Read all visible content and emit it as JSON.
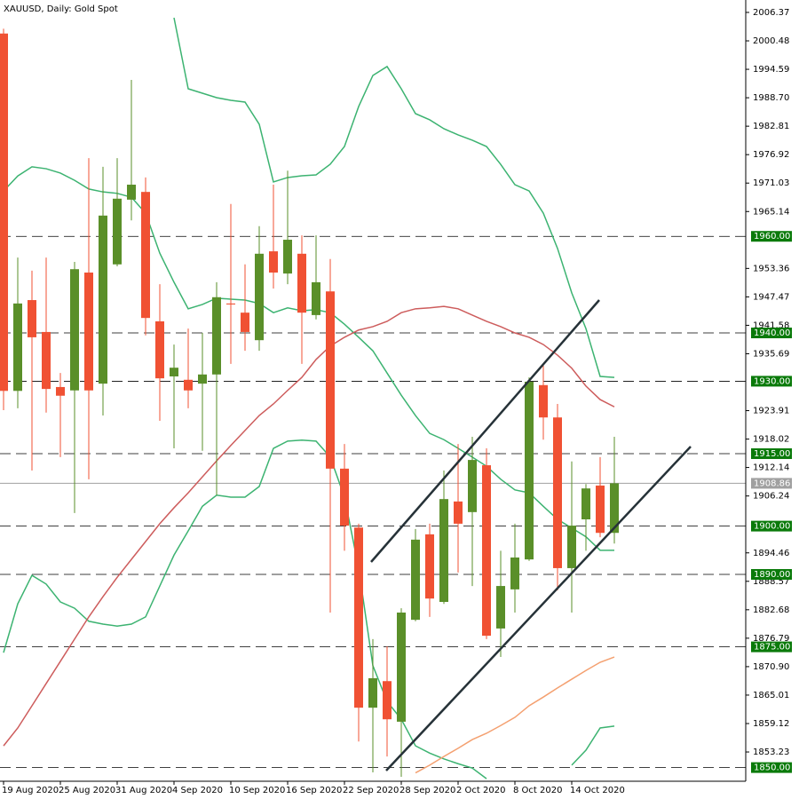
{
  "chart_data": {
    "type": "candlestick",
    "title": "XAUUSD, Daily:  Gold Spot",
    "categories": [
      "19 Aug 2020",
      null,
      null,
      null,
      "25 Aug 2020",
      null,
      null,
      null,
      "31 Aug 2020",
      null,
      null,
      null,
      "4 Sep 2020",
      null,
      null,
      null,
      "10 Sep 2020",
      null,
      null,
      null,
      "16 Sep 2020",
      null,
      null,
      null,
      "22 Sep 2020",
      null,
      null,
      null,
      "28 Sep 2020",
      null,
      null,
      null,
      "2 Oct 2020",
      null,
      null,
      null,
      "8 Oct 2020",
      null,
      null,
      null,
      "14 Oct 2020",
      null,
      null,
      null
    ],
    "open": [
      2002,
      1928,
      1946.8,
      1940.2,
      1928.8,
      1928.1,
      1952.5,
      1929.5,
      1954.2,
      1967.6,
      1969.2,
      1942.4,
      1931.0,
      1930.3,
      1929.5,
      1931.4,
      1946.1,
      1944.2,
      1938.5,
      1956.9,
      1952.3,
      1956.4,
      1943.7,
      1948.6,
      1911.9,
      1899.7,
      1862.4,
      1867.9,
      1859.5,
      1880.6,
      1898.3,
      1884.3,
      1905.1,
      1902.9,
      1912.6,
      1878.8,
      1886.9,
      1893.1,
      1929.2,
      1922.5,
      1891.3,
      1901.4,
      1908.4,
      1898.6
    ],
    "high": [
      2003,
      1955.6,
      1952.9,
      1955.6,
      1931.7,
      1954.7,
      1976.2,
      1974.4,
      1976.2,
      1992.4,
      1972.2,
      1950.1,
      1937.6,
      1940.9,
      1940.0,
      1950.5,
      1966.7,
      1954.2,
      1962.1,
      1970.7,
      1973.6,
      1960.2,
      1960.2,
      1955.3,
      1917.0,
      1900.5,
      1876.6,
      1875.1,
      1883.0,
      1899.4,
      1900.5,
      1911.5,
      1917.0,
      1918.5,
      1916.1,
      1894.9,
      1900.5,
      1930.8,
      1933.2,
      1925.3,
      1913.4,
      1908.7,
      1914.3,
      1918.5
    ],
    "low": [
      1924,
      1924.4,
      1911.5,
      1923.5,
      1914.3,
      1902.7,
      1909.7,
      1922.9,
      1953.8,
      1963.3,
      1939.5,
      1921.8,
      1916.1,
      1924.4,
      1915.6,
      1906.4,
      1933.6,
      1936.3,
      1936.3,
      1949.2,
      1950.1,
      1933.6,
      1942.8,
      1882.1,
      1894.9,
      1855.4,
      1849.0,
      1852.3,
      1848.1,
      1880.3,
      1881.2,
      1883.9,
      1890.4,
      1887.6,
      1876.6,
      1872.9,
      1882.1,
      1892.8,
      1917.9,
      1886.7,
      1882.1,
      1894.9,
      1897.7,
      1896.4
    ],
    "close": [
      1928,
      1946.1,
      1939.1,
      1928.4,
      1927.0,
      1953.2,
      1928.1,
      1964.3,
      1967.8,
      1970.7,
      1943.1,
      1930.6,
      1932.8,
      1928.1,
      1931.4,
      1947.4,
      1945.9,
      1940.2,
      1956.4,
      1952.5,
      1959.3,
      1944.2,
      1950.5,
      1911.9,
      1900.1,
      1862.4,
      1868.5,
      1860.0,
      1882.1,
      1897.2,
      1885.0,
      1905.6,
      1900.5,
      1913.7,
      1877.3,
      1887.6,
      1893.5,
      1929.9,
      1922.5,
      1891.3,
      1900.1,
      1907.8,
      1898.6,
      1908.86
    ],
    "up_color": "#5a8f29",
    "down_color": "#f05133",
    "series": [
      {
        "color": "#3cb371",
        "values": [
          null,
          null,
          null,
          null,
          null,
          null,
          null,
          null,
          null,
          null,
          null,
          null,
          2005.27,
          1990.56,
          1989.64,
          1988.72,
          1988.17,
          1987.8,
          1983.21,
          1971.26,
          1972.18,
          1972.55,
          1972.73,
          1974.94,
          1978.61,
          1986.89,
          1993.32,
          1995.16,
          1990.56,
          1985.41,
          1984.13,
          1982.29,
          1981.0,
          1979.9,
          1978.6,
          1974.9,
          1970.7,
          1969.4,
          1964.8,
          1957.5,
          1948.3,
          1940.9,
          1931.0,
          1930.8
        ]
      },
      {
        "color": "#3cb371",
        "values": [
          1969.4,
          1972.5,
          1974.4,
          1974.0,
          1973.1,
          1971.6,
          1969.8,
          1969.2,
          1968.9,
          1968.1,
          1964.8,
          1956.5,
          1950.5,
          1945.0,
          1945.9,
          1947.2,
          1947.0,
          1946.8,
          1946.1,
          1944.2,
          1945.2,
          1944.6,
          1944.8,
          1944.2,
          1941.8,
          1939.1,
          1936.3,
          1931.7,
          1927.1,
          1922.9,
          1919.2,
          1917.9,
          1916.1,
          1914.3,
          1912.4,
          1909.7,
          1907.5,
          1906.9,
          1904.1,
          1901.4,
          1899.6,
          1897.8,
          1895.0,
          1895.0
        ]
      },
      {
        "color": "#3cb371",
        "values": [
          1873.8,
          1883.9,
          1889.8,
          1888.0,
          1884.3,
          1883.0,
          1880.3,
          1879.7,
          1879.3,
          1879.7,
          1881.2,
          1887.6,
          1894.0,
          1899.0,
          1904.1,
          1906.4,
          1906.0,
          1906.0,
          1908.2,
          1916.1,
          1917.6,
          1917.8,
          1917.6,
          1914.3,
          1906.0,
          1891.3,
          1871.1,
          1863.7,
          1860.0,
          1854.5,
          1853.0,
          1851.8,
          1850.8,
          1849.9,
          1847.7,
          null,
          null,
          null,
          null,
          null,
          1850.5,
          1853.6,
          1858.2,
          1858.6
        ]
      },
      {
        "color": "#cd5c5c",
        "values": [
          1854.5,
          1858.2,
          1862.8,
          1867.4,
          1872.0,
          1876.6,
          1881.2,
          1885.4,
          1889.4,
          1893.1,
          1896.8,
          1900.5,
          1903.8,
          1906.9,
          1910.2,
          1913.5,
          1916.7,
          1919.8,
          1922.9,
          1925.3,
          1928.1,
          1930.8,
          1934.5,
          1937.3,
          1939.1,
          1940.6,
          1941.3,
          1942.4,
          1944.2,
          1945.0,
          1945.2,
          1945.5,
          1945.0,
          1943.7,
          1942.4,
          1941.3,
          1940.0,
          1939.1,
          1937.6,
          1935.4,
          1932.7,
          1929.0,
          1926.2,
          1924.7
        ]
      },
      {
        "color": "#f4a070",
        "values": [
          null,
          null,
          null,
          null,
          null,
          null,
          null,
          null,
          null,
          null,
          null,
          null,
          null,
          null,
          null,
          null,
          null,
          null,
          null,
          null,
          null,
          null,
          null,
          null,
          null,
          null,
          null,
          null,
          null,
          1848.9,
          1850.5,
          1852.3,
          1854.0,
          1855.8,
          1857.1,
          1858.7,
          1860.4,
          1862.8,
          1864.6,
          1866.5,
          1868.3,
          1870.1,
          1871.8,
          1872.9
        ]
      }
    ],
    "levels": [
      {
        "value": 1960,
        "label": "1960.00"
      },
      {
        "value": 1940,
        "label": "1940.00"
      },
      {
        "value": 1930,
        "label": "1930.00"
      },
      {
        "value": 1915,
        "label": "1915.00"
      },
      {
        "value": 1900,
        "label": "1900.00"
      },
      {
        "value": 1890,
        "label": "1890.00"
      },
      {
        "value": 1875,
        "label": "1875.00"
      },
      {
        "value": 1850,
        "label": "1850.00"
      }
    ],
    "level_color": "#0a7a0a",
    "current_price": 1908.86,
    "current_color": "#a0a0a0",
    "ylim": [
      1847.17,
      2008.94
    ],
    "yticks": [
      2006.37,
      2000.48,
      1994.59,
      {
        "value": 1988.7,
        "label": "1988.70"
      },
      1982.81,
      1976.92,
      1971.03,
      1965.14,
      1953.36,
      1947.47,
      1941.58,
      1935.69,
      1923.91,
      1918.02,
      1912.14,
      1906.24,
      1894.46,
      1888.57,
      1882.68,
      1876.79,
      {
        "value": 1870.9,
        "label": "1870.90"
      },
      1865.01,
      1859.12,
      1853.23
    ]
  }
}
